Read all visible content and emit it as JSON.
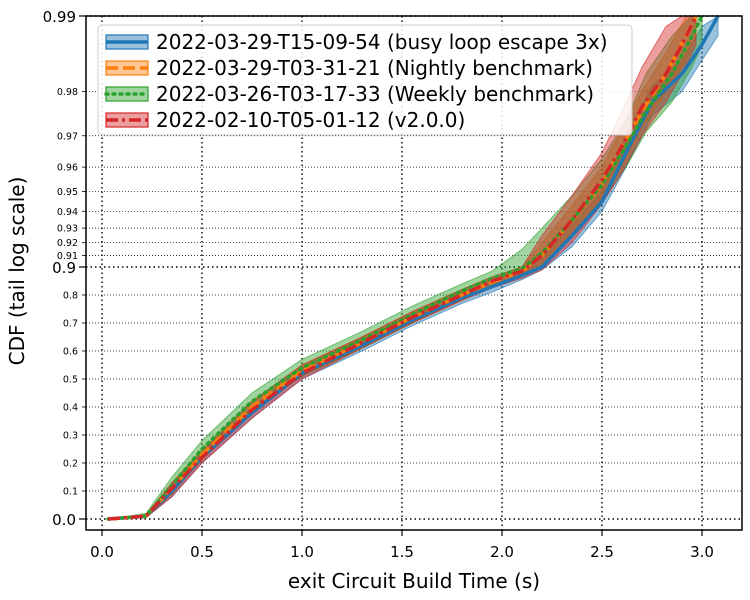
{
  "chart_data": {
    "type": "line",
    "xlabel": "exit Circuit Build Time (s)",
    "ylabel": "CDF (tail log scale)",
    "yscale": "tail-log",
    "xlim": [
      -0.08,
      3.2
    ],
    "x_ticks": [
      {
        "value": 0.0,
        "label": "0.0"
      },
      {
        "value": 0.5,
        "label": "0.5"
      },
      {
        "value": 1.0,
        "label": "1.0"
      },
      {
        "value": 1.5,
        "label": "1.5"
      },
      {
        "value": 2.0,
        "label": "2.0"
      },
      {
        "value": 2.5,
        "label": "2.5"
      },
      {
        "value": 3.0,
        "label": "3.0"
      }
    ],
    "y_major_ticks": [
      {
        "value": 0.0,
        "label": "0.0"
      },
      {
        "value": 0.9,
        "label": "0.9"
      },
      {
        "value": 0.99,
        "label": "0.99"
      }
    ],
    "y_minor_ticks": [
      {
        "value": 0.1,
        "label": "0.1"
      },
      {
        "value": 0.2,
        "label": "0.2"
      },
      {
        "value": 0.3,
        "label": "0.3"
      },
      {
        "value": 0.4,
        "label": "0.4"
      },
      {
        "value": 0.5,
        "label": "0.5"
      },
      {
        "value": 0.6,
        "label": "0.6"
      },
      {
        "value": 0.7,
        "label": "0.7"
      },
      {
        "value": 0.8,
        "label": "0.8"
      },
      {
        "value": 0.91,
        "label": "0.91"
      },
      {
        "value": 0.92,
        "label": "0.92"
      },
      {
        "value": 0.93,
        "label": "0.93"
      },
      {
        "value": 0.94,
        "label": "0.94"
      },
      {
        "value": 0.95,
        "label": "0.95"
      },
      {
        "value": 0.96,
        "label": "0.96"
      },
      {
        "value": 0.97,
        "label": "0.97"
      },
      {
        "value": 0.98,
        "label": "0.98"
      }
    ],
    "grid": true,
    "legend_position": "top-left",
    "series": [
      {
        "name": "2022-03-29-T15-09-54 (busy loop escape 3x)",
        "color": "#1f77b4",
        "linestyle": "solid",
        "x": [
          0.03,
          0.22,
          0.35,
          0.5,
          0.75,
          1.0,
          1.3,
          1.55,
          1.8,
          1.95,
          2.1,
          2.2,
          2.35,
          2.5,
          2.62,
          2.75,
          2.9,
          3.0,
          3.08
        ],
        "y": [
          0.0,
          0.01,
          0.1,
          0.22,
          0.38,
          0.52,
          0.62,
          0.71,
          0.79,
          0.83,
          0.87,
          0.9,
          0.925,
          0.945,
          0.965,
          0.978,
          0.983,
          0.987,
          0.99
        ],
        "band_lower": [
          0.0,
          0.005,
          0.08,
          0.2,
          0.36,
          0.5,
          0.6,
          0.69,
          0.77,
          0.81,
          0.855,
          0.89,
          0.917,
          0.94,
          0.96,
          0.975,
          0.98,
          0.985,
          0.988
        ],
        "band_upper": [
          0.0,
          0.015,
          0.12,
          0.24,
          0.4,
          0.54,
          0.64,
          0.73,
          0.81,
          0.85,
          0.885,
          0.91,
          0.932,
          0.95,
          0.97,
          0.981,
          0.985,
          0.989,
          0.99
        ]
      },
      {
        "name": "2022-03-29-T03-31-21 (Nightly benchmark)",
        "color": "#ff7f0e",
        "linestyle": "dashed",
        "x": [
          0.03,
          0.22,
          0.35,
          0.5,
          0.75,
          1.0,
          1.3,
          1.55,
          1.8,
          1.95,
          2.1,
          2.2,
          2.35,
          2.5,
          2.6,
          2.7,
          2.82,
          2.92,
          2.97
        ],
        "y": [
          0.0,
          0.01,
          0.11,
          0.23,
          0.4,
          0.53,
          0.63,
          0.72,
          0.8,
          0.845,
          0.885,
          0.91,
          0.935,
          0.953,
          0.967,
          0.976,
          0.983,
          0.988,
          0.99
        ],
        "band_lower": [
          0.0,
          0.005,
          0.09,
          0.21,
          0.38,
          0.51,
          0.61,
          0.7,
          0.78,
          0.83,
          0.87,
          0.9,
          0.925,
          0.946,
          0.96,
          0.972,
          0.98,
          0.985,
          0.988
        ],
        "band_upper": [
          0.0,
          0.015,
          0.13,
          0.25,
          0.42,
          0.55,
          0.65,
          0.74,
          0.82,
          0.86,
          0.9,
          0.92,
          0.943,
          0.96,
          0.972,
          0.98,
          0.986,
          0.99,
          0.99
        ]
      },
      {
        "name": "2022-03-26-T03-17-33 (Weekly benchmark)",
        "color": "#2ca02c",
        "linestyle": "dotted",
        "x": [
          0.03,
          0.22,
          0.35,
          0.5,
          0.75,
          1.0,
          1.3,
          1.55,
          1.8,
          1.95,
          2.1,
          2.2,
          2.35,
          2.5,
          2.62,
          2.72,
          2.85,
          2.95,
          3.0
        ],
        "y": [
          0.0,
          0.01,
          0.12,
          0.25,
          0.42,
          0.54,
          0.64,
          0.73,
          0.815,
          0.86,
          0.895,
          0.912,
          0.935,
          0.953,
          0.967,
          0.976,
          0.983,
          0.988,
          0.99
        ],
        "band_lower": [
          0.0,
          0.005,
          0.09,
          0.22,
          0.39,
          0.51,
          0.61,
          0.7,
          0.785,
          0.835,
          0.875,
          0.9,
          0.925,
          0.945,
          0.96,
          0.971,
          0.978,
          0.984,
          0.987
        ],
        "band_upper": [
          0.0,
          0.02,
          0.15,
          0.28,
          0.45,
          0.57,
          0.67,
          0.76,
          0.84,
          0.885,
          0.915,
          0.93,
          0.948,
          0.963,
          0.974,
          0.983,
          0.988,
          0.99,
          0.99
        ]
      },
      {
        "name": "2022-02-10-T05-01-12 (v2.0.0)",
        "color": "#d62728",
        "linestyle": "dashdot",
        "x": [
          0.03,
          0.22,
          0.35,
          0.5,
          0.75,
          1.0,
          1.3,
          1.55,
          1.8,
          1.95,
          2.1,
          2.2,
          2.35,
          2.5,
          2.6,
          2.7,
          2.82,
          2.9,
          2.97
        ],
        "y": [
          0.0,
          0.01,
          0.11,
          0.22,
          0.39,
          0.52,
          0.63,
          0.72,
          0.8,
          0.85,
          0.885,
          0.91,
          0.935,
          0.955,
          0.967,
          0.977,
          0.983,
          0.987,
          0.99
        ],
        "band_lower": [
          0.0,
          0.005,
          0.08,
          0.2,
          0.36,
          0.5,
          0.61,
          0.7,
          0.78,
          0.825,
          0.86,
          0.89,
          0.92,
          0.944,
          0.958,
          0.97,
          0.978,
          0.983,
          0.987
        ],
        "band_upper": [
          0.0,
          0.015,
          0.13,
          0.24,
          0.42,
          0.55,
          0.65,
          0.74,
          0.82,
          0.865,
          0.9,
          0.925,
          0.948,
          0.965,
          0.976,
          0.984,
          0.989,
          0.99,
          0.99
        ]
      }
    ]
  }
}
